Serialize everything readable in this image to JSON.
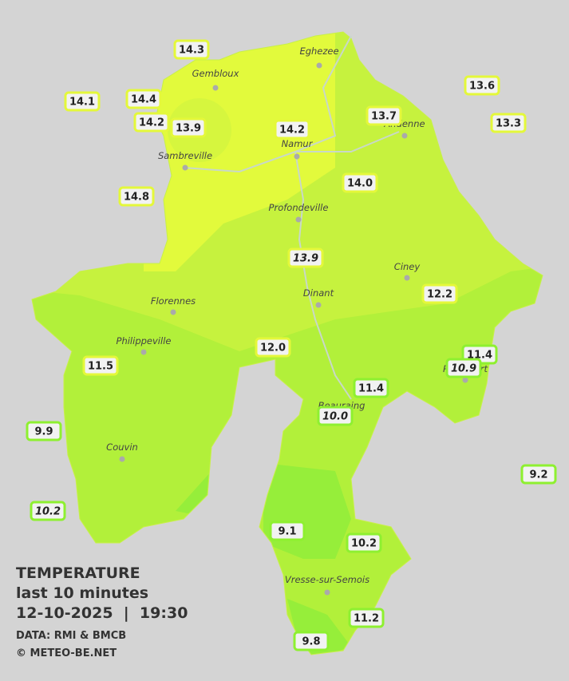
{
  "header": {
    "title": "TEMPERATURE",
    "subtitle": "last 10 minutes",
    "datetime": "12-10-2025  |  19:30",
    "source": "DATA: RMI & BMCB",
    "copyright": "© METEO-BE.NET"
  },
  "towns": [
    "Eghezee",
    "Gembloux",
    "Andenne",
    "Namur",
    "Sambreville",
    "Profondeville",
    "Ciney",
    "Dinant",
    "Florennes",
    "Philippeville",
    "Rochefort",
    "Beauraing",
    "Couvin",
    "Vresse-sur-Semois"
  ],
  "stations": [
    "14.3",
    "14.1",
    "14.4",
    "14.2",
    "13.9",
    "14.2",
    "13.7",
    "13.6",
    "13.3",
    "14.8",
    "14.0",
    "13.9",
    "12.2",
    "12.0",
    "11.4",
    "10.9",
    "11.5",
    "11.4",
    "10.0",
    "9.9",
    "9.2",
    "10.2",
    "9.1",
    "10.2",
    "11.2",
    "9.8"
  ]
}
